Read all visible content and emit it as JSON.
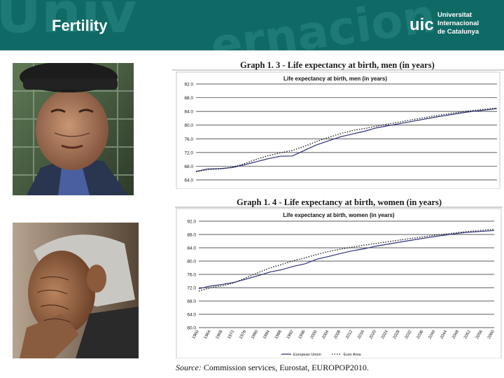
{
  "slide": {
    "title": "Fertility",
    "logo_lines": [
      "Universitat",
      "Internacional",
      "de Catalunya"
    ],
    "logo_mark": "uic"
  },
  "graph_men_caption": "Graph 1. 3 - Life expectancy at birth, men (in years)",
  "graph_women_caption": "Graph 1. 4 - Life expectancy at birth, women (in years)",
  "source": {
    "label": "Source:",
    "text": "Commission services, Eurostat, EUROPOP2010."
  },
  "chart_data": [
    {
      "type": "line",
      "title": "Life expectancy at birth, men (in years)",
      "yticks": [
        "92.0",
        "88.0",
        "84.0",
        "80.0",
        "76.0",
        "72.0",
        "68.0",
        "64.0"
      ],
      "ylim": [
        64,
        92
      ],
      "xlim": [
        1960,
        2060
      ],
      "series": [
        {
          "name": "European Union",
          "style": "solid",
          "color": "#2b2f7a",
          "x": [
            1960,
            1964,
            1968,
            1972,
            1976,
            1980,
            1984,
            1988,
            1992,
            1996,
            2000,
            2004,
            2008,
            2012,
            2016,
            2020,
            2030,
            2040,
            2050,
            2060
          ],
          "y": [
            66.5,
            67.2,
            67.3,
            67.6,
            68.4,
            69.3,
            70.2,
            70.9,
            71.0,
            72.6,
            74.2,
            75.4,
            76.6,
            77.4,
            78.2,
            79.2,
            80.8,
            82.4,
            83.8,
            84.8
          ]
        },
        {
          "name": "Euro Area",
          "style": "dotted",
          "color": "#222222",
          "x": [
            1960,
            1964,
            1968,
            1972,
            1976,
            1980,
            1984,
            1988,
            1992,
            1996,
            2000,
            2004,
            2008,
            2012,
            2016,
            2020,
            2030,
            2040,
            2050,
            2060
          ],
          "y": [
            66.4,
            67.0,
            67.2,
            67.7,
            68.7,
            70.0,
            71.1,
            71.9,
            72.6,
            73.8,
            75.2,
            76.4,
            77.5,
            78.4,
            79.0,
            79.7,
            81.3,
            82.8,
            84.1,
            85.0
          ]
        }
      ]
    },
    {
      "type": "line",
      "title": "Life expectancy at birth, women (in years)",
      "yticks": [
        "92.0",
        "88.0",
        "84.0",
        "80.0",
        "76.0",
        "72.0",
        "68.0",
        "64.0",
        "60.0"
      ],
      "ylim": [
        60,
        92
      ],
      "xlim": [
        1960,
        2060
      ],
      "xticks": [
        "1960",
        "1964",
        "1968",
        "1972",
        "1976",
        "1980",
        "1984",
        "1988",
        "1992",
        "1996",
        "2000",
        "2004",
        "2008",
        "2012",
        "2016",
        "2020",
        "2024",
        "2028",
        "2032",
        "2036",
        "2040",
        "2044",
        "2048",
        "2052",
        "2056",
        "2060"
      ],
      "legend": [
        "European Union",
        "Euro Area"
      ],
      "series": [
        {
          "name": "European Union",
          "style": "solid",
          "color": "#2b2f7a",
          "x": [
            1960,
            1964,
            1968,
            1972,
            1976,
            1980,
            1984,
            1988,
            1992,
            1996,
            2000,
            2004,
            2008,
            2012,
            2016,
            2020,
            2030,
            2040,
            2050,
            2060
          ],
          "y": [
            71.7,
            72.5,
            73.0,
            73.6,
            74.6,
            75.6,
            76.7,
            77.4,
            78.4,
            79.2,
            80.6,
            81.4,
            82.3,
            83.1,
            83.7,
            84.5,
            86.0,
            87.4,
            88.6,
            89.2
          ]
        },
        {
          "name": "Euro Area",
          "style": "dotted",
          "color": "#222222",
          "x": [
            1960,
            1964,
            1968,
            1972,
            1976,
            1980,
            1984,
            1988,
            1992,
            1996,
            2000,
            2004,
            2008,
            2012,
            2016,
            2020,
            2030,
            2040,
            2050,
            2060
          ],
          "y": [
            71.0,
            72.0,
            72.6,
            73.5,
            75.0,
            76.5,
            77.9,
            79.0,
            80.1,
            81.0,
            82.0,
            82.9,
            83.6,
            84.2,
            84.8,
            85.3,
            86.6,
            87.8,
            88.8,
            89.6
          ]
        }
      ]
    }
  ]
}
